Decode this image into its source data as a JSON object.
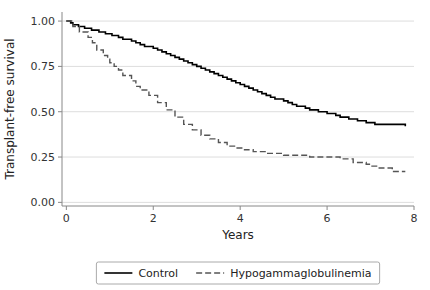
{
  "chart_data": {
    "type": "step",
    "xlabel": "Years",
    "ylabel": "Transplant-free survival",
    "xlim": [
      -0.1,
      8
    ],
    "ylim": [
      -0.02,
      1.05
    ],
    "xticks": [
      0,
      2,
      4,
      6,
      8
    ],
    "yticks": [
      {
        "value": 0.0,
        "label": "0.00"
      },
      {
        "value": 0.25,
        "label": "0.25"
      },
      {
        "value": 0.5,
        "label": "0.50"
      },
      {
        "value": 0.75,
        "label": "0.75"
      },
      {
        "value": 1.0,
        "label": "1.00"
      }
    ],
    "grid": "y",
    "legend": "bottom",
    "series": [
      {
        "name": "Control",
        "color": "#000000",
        "line_style": "solid",
        "x": [
          0.0,
          0.1,
          0.15,
          0.2,
          0.28,
          0.35,
          0.42,
          0.5,
          0.58,
          0.65,
          0.7,
          0.75,
          0.8,
          0.9,
          1.0,
          1.05,
          1.1,
          1.2,
          1.3,
          1.4,
          1.5,
          1.6,
          1.65,
          1.7,
          1.8,
          1.9,
          2.0,
          2.1,
          2.15,
          2.2,
          2.25,
          2.3,
          2.35,
          2.4,
          2.5,
          2.55,
          2.6,
          2.65,
          2.7,
          2.75,
          2.8,
          2.85,
          2.9,
          3.0,
          3.05,
          3.1,
          3.15,
          3.2,
          3.25,
          3.3,
          3.35,
          3.4,
          3.5,
          3.55,
          3.6,
          3.65,
          3.7,
          3.75,
          3.8,
          3.85,
          3.9,
          4.0,
          4.05,
          4.1,
          4.15,
          4.2,
          4.25,
          4.3,
          4.35,
          4.4,
          4.45,
          4.5,
          4.55,
          4.6,
          4.65,
          4.7,
          4.8,
          4.9,
          5.0,
          5.05,
          5.1,
          5.15,
          5.2,
          5.3,
          5.4,
          5.5,
          5.6,
          5.7,
          5.8,
          5.9,
          6.0,
          6.1,
          6.2,
          6.3,
          6.4,
          6.5,
          6.6,
          6.65,
          6.7,
          6.75,
          6.8,
          6.9,
          6.95,
          7.0,
          7.1,
          7.2,
          7.3,
          7.4,
          7.5,
          7.6,
          7.7,
          7.75,
          7.8
        ],
        "values": [
          1.0,
          0.99,
          0.98,
          0.98,
          0.97,
          0.97,
          0.96,
          0.96,
          0.95,
          0.95,
          0.95,
          0.94,
          0.94,
          0.93,
          0.93,
          0.92,
          0.92,
          0.91,
          0.9,
          0.9,
          0.89,
          0.88,
          0.88,
          0.87,
          0.86,
          0.86,
          0.85,
          0.84,
          0.84,
          0.83,
          0.83,
          0.82,
          0.82,
          0.81,
          0.8,
          0.8,
          0.79,
          0.79,
          0.78,
          0.78,
          0.77,
          0.77,
          0.76,
          0.75,
          0.75,
          0.74,
          0.74,
          0.73,
          0.73,
          0.72,
          0.72,
          0.71,
          0.7,
          0.7,
          0.69,
          0.69,
          0.68,
          0.68,
          0.67,
          0.67,
          0.66,
          0.65,
          0.65,
          0.64,
          0.64,
          0.63,
          0.63,
          0.62,
          0.62,
          0.61,
          0.61,
          0.6,
          0.6,
          0.59,
          0.59,
          0.58,
          0.57,
          0.57,
          0.56,
          0.56,
          0.55,
          0.55,
          0.54,
          0.53,
          0.53,
          0.52,
          0.51,
          0.51,
          0.5,
          0.5,
          0.49,
          0.49,
          0.48,
          0.47,
          0.47,
          0.46,
          0.46,
          0.46,
          0.45,
          0.45,
          0.45,
          0.44,
          0.44,
          0.44,
          0.43,
          0.43,
          0.43,
          0.43,
          0.43,
          0.43,
          0.43,
          0.43,
          0.42
        ]
      },
      {
        "name": "Hypogammaglobulinemia",
        "color": "#555555",
        "line_style": "dashed",
        "x": [
          0.0,
          0.15,
          0.3,
          0.5,
          0.6,
          0.7,
          0.85,
          0.95,
          1.0,
          1.1,
          1.2,
          1.3,
          1.5,
          1.6,
          1.7,
          1.9,
          2.1,
          2.3,
          2.5,
          2.7,
          2.9,
          3.1,
          3.3,
          3.5,
          3.7,
          3.9,
          4.1,
          4.3,
          4.6,
          5.0,
          5.3,
          5.6,
          6.0,
          6.3,
          6.6,
          6.9,
          7.0,
          7.2,
          7.5,
          7.8
        ],
        "values": [
          1.0,
          0.97,
          0.94,
          0.91,
          0.88,
          0.84,
          0.81,
          0.79,
          0.77,
          0.75,
          0.73,
          0.7,
          0.67,
          0.64,
          0.62,
          0.59,
          0.55,
          0.51,
          0.47,
          0.43,
          0.4,
          0.37,
          0.35,
          0.33,
          0.31,
          0.3,
          0.29,
          0.28,
          0.27,
          0.26,
          0.26,
          0.25,
          0.25,
          0.24,
          0.22,
          0.21,
          0.2,
          0.19,
          0.17,
          0.17
        ]
      }
    ]
  }
}
